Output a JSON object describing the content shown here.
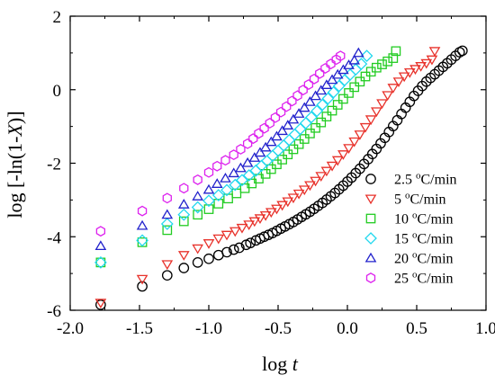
{
  "chart_data": {
    "type": "scatter",
    "title": "",
    "xlabel": {
      "prefix": "log ",
      "var": "t",
      "suffix": ""
    },
    "ylabel": {
      "prefix": "log [-ln(1-",
      "var": "X",
      "suffix": ")]"
    },
    "xlim": [
      -2.0,
      1.0
    ],
    "ylim": [
      -6,
      2
    ],
    "xticks": [
      -2.0,
      -1.5,
      -1.0,
      -0.5,
      0.0,
      0.5,
      1.0
    ],
    "xtick_labels": [
      "-2.0",
      "-1.5",
      "-1.0",
      "-0.5",
      "0.0",
      "0.5",
      "1.0"
    ],
    "yticks": [
      -6,
      -4,
      -2,
      0,
      2
    ],
    "ytick_labels": [
      "-6",
      "-4",
      "-2",
      "0",
      "2"
    ],
    "grid": false,
    "legend_position": "right",
    "series": [
      {
        "name": "2.5 °C/min",
        "legend_value": "2.5",
        "legend_deg": "o",
        "legend_unit": "C/min",
        "marker": "circle",
        "color": "#000000",
        "x": [
          -1.78,
          -1.48,
          -1.3,
          -1.18,
          -1.08,
          -1.0,
          -0.93,
          -0.87,
          -0.82,
          -0.78,
          -0.73,
          -0.7,
          -0.66,
          -0.63,
          -0.6,
          -0.57,
          -0.54,
          -0.51,
          -0.48,
          -0.45,
          -0.42,
          -0.39,
          -0.36,
          -0.33,
          -0.3,
          -0.27,
          -0.24,
          -0.21,
          -0.18,
          -0.15,
          -0.12,
          -0.09,
          -0.06,
          -0.03,
          0.0,
          0.03,
          0.06,
          0.09,
          0.12,
          0.15,
          0.18,
          0.21,
          0.24,
          0.27,
          0.3,
          0.33,
          0.36,
          0.39,
          0.42,
          0.45,
          0.48,
          0.51,
          0.54,
          0.57,
          0.6,
          0.63,
          0.66,
          0.69,
          0.72,
          0.75,
          0.78,
          0.81,
          0.83
        ],
        "y": [
          -5.85,
          -5.35,
          -5.05,
          -4.85,
          -4.7,
          -4.6,
          -4.5,
          -4.42,
          -4.35,
          -4.3,
          -4.22,
          -4.17,
          -4.1,
          -4.05,
          -4.0,
          -3.95,
          -3.9,
          -3.84,
          -3.78,
          -3.72,
          -3.66,
          -3.6,
          -3.53,
          -3.46,
          -3.39,
          -3.32,
          -3.24,
          -3.16,
          -3.08,
          -2.99,
          -2.9,
          -2.81,
          -2.71,
          -2.61,
          -2.5,
          -2.39,
          -2.27,
          -2.15,
          -2.02,
          -1.89,
          -1.75,
          -1.61,
          -1.46,
          -1.31,
          -1.15,
          -0.99,
          -0.83,
          -0.66,
          -0.49,
          -0.33,
          -0.17,
          -0.03,
          0.1,
          0.22,
          0.32,
          0.42,
          0.52,
          0.62,
          0.72,
          0.82,
          0.92,
          1.02,
          1.06
        ]
      },
      {
        "name": "5 °C/min",
        "legend_value": "5",
        "legend_deg": "o",
        "legend_unit": "C/min",
        "marker": "triangle-down",
        "color": "#e8322b",
        "x": [
          -1.78,
          -1.48,
          -1.3,
          -1.18,
          -1.08,
          -1.0,
          -0.93,
          -0.87,
          -0.81,
          -0.76,
          -0.71,
          -0.67,
          -0.63,
          -0.59,
          -0.55,
          -0.51,
          -0.47,
          -0.43,
          -0.39,
          -0.35,
          -0.31,
          -0.27,
          -0.23,
          -0.19,
          -0.15,
          -0.11,
          -0.07,
          -0.03,
          0.01,
          0.05,
          0.09,
          0.13,
          0.17,
          0.21,
          0.25,
          0.29,
          0.33,
          0.37,
          0.41,
          0.45,
          0.49,
          0.53,
          0.57,
          0.61,
          0.63
        ],
        "y": [
          -5.8,
          -5.15,
          -4.75,
          -4.5,
          -4.32,
          -4.18,
          -4.05,
          -3.95,
          -3.85,
          -3.76,
          -3.67,
          -3.58,
          -3.5,
          -3.42,
          -3.33,
          -3.24,
          -3.14,
          -3.04,
          -2.94,
          -2.83,
          -2.72,
          -2.6,
          -2.48,
          -2.35,
          -2.21,
          -2.07,
          -1.92,
          -1.76,
          -1.59,
          -1.41,
          -1.22,
          -1.02,
          -0.81,
          -0.59,
          -0.37,
          -0.15,
          0.05,
          0.22,
          0.36,
          0.47,
          0.56,
          0.64,
          0.72,
          0.82,
          1.05
        ]
      },
      {
        "name": "10 °C/min",
        "legend_value": "10",
        "legend_deg": "o",
        "legend_unit": "C/min",
        "marker": "square",
        "color": "#22cc22",
        "x": [
          -1.78,
          -1.48,
          -1.3,
          -1.18,
          -1.08,
          -1.0,
          -0.93,
          -0.86,
          -0.8,
          -0.74,
          -0.69,
          -0.64,
          -0.59,
          -0.55,
          -0.51,
          -0.47,
          -0.43,
          -0.39,
          -0.35,
          -0.31,
          -0.27,
          -0.23,
          -0.19,
          -0.15,
          -0.11,
          -0.07,
          -0.03,
          0.01,
          0.05,
          0.09,
          0.13,
          0.17,
          0.21,
          0.25,
          0.29,
          0.33,
          0.35
        ],
        "y": [
          -4.7,
          -4.15,
          -3.82,
          -3.58,
          -3.4,
          -3.25,
          -3.1,
          -2.96,
          -2.82,
          -2.68,
          -2.55,
          -2.42,
          -2.29,
          -2.16,
          -2.03,
          -1.9,
          -1.76,
          -1.62,
          -1.48,
          -1.34,
          -1.19,
          -1.04,
          -0.89,
          -0.73,
          -0.57,
          -0.41,
          -0.25,
          -0.09,
          0.07,
          0.22,
          0.36,
          0.49,
          0.6,
          0.69,
          0.77,
          0.86,
          1.05
        ]
      },
      {
        "name": "15 °C/min",
        "legend_value": "15",
        "legend_deg": "o",
        "legend_unit": "C/min",
        "marker": "diamond",
        "color": "#22d8ee",
        "x": [
          -1.78,
          -1.48,
          -1.3,
          -1.18,
          -1.08,
          -1.0,
          -0.93,
          -0.87,
          -0.81,
          -0.76,
          -0.71,
          -0.66,
          -0.62,
          -0.58,
          -0.54,
          -0.5,
          -0.46,
          -0.42,
          -0.38,
          -0.34,
          -0.3,
          -0.26,
          -0.22,
          -0.18,
          -0.14,
          -0.1,
          -0.06,
          -0.02,
          0.02,
          0.06,
          0.1,
          0.14
        ],
        "y": [
          -4.7,
          -4.1,
          -3.65,
          -3.4,
          -3.2,
          -3.02,
          -2.87,
          -2.73,
          -2.59,
          -2.46,
          -2.33,
          -2.2,
          -2.07,
          -1.94,
          -1.8,
          -1.66,
          -1.52,
          -1.37,
          -1.22,
          -1.07,
          -0.91,
          -0.75,
          -0.58,
          -0.41,
          -0.24,
          -0.07,
          0.1,
          0.26,
          0.41,
          0.55,
          0.7,
          0.92
        ]
      },
      {
        "name": "20 °C/min",
        "legend_value": "20",
        "legend_deg": "o",
        "legend_unit": "C/min",
        "marker": "triangle-up",
        "color": "#2222cc",
        "x": [
          -1.78,
          -1.48,
          -1.3,
          -1.18,
          -1.08,
          -1.0,
          -0.94,
          -0.88,
          -0.82,
          -0.77,
          -0.72,
          -0.67,
          -0.63,
          -0.59,
          -0.55,
          -0.51,
          -0.47,
          -0.43,
          -0.39,
          -0.35,
          -0.31,
          -0.27,
          -0.23,
          -0.19,
          -0.15,
          -0.11,
          -0.07,
          -0.03,
          0.01,
          0.05,
          0.08
        ],
        "y": [
          -4.25,
          -3.7,
          -3.4,
          -3.12,
          -2.9,
          -2.72,
          -2.56,
          -2.41,
          -2.27,
          -2.13,
          -1.99,
          -1.85,
          -1.71,
          -1.57,
          -1.42,
          -1.27,
          -1.12,
          -0.97,
          -0.81,
          -0.65,
          -0.49,
          -0.33,
          -0.17,
          -0.02,
          0.13,
          0.27,
          0.41,
          0.54,
          0.67,
          0.8,
          1.0
        ]
      },
      {
        "name": "25 °C/min",
        "legend_value": "25",
        "legend_deg": "o",
        "legend_unit": "C/min",
        "marker": "hexagon",
        "color": "#dd22ee",
        "x": [
          -1.78,
          -1.48,
          -1.3,
          -1.18,
          -1.08,
          -1.0,
          -0.94,
          -0.88,
          -0.82,
          -0.77,
          -0.72,
          -0.68,
          -0.64,
          -0.6,
          -0.56,
          -0.52,
          -0.48,
          -0.44,
          -0.4,
          -0.36,
          -0.32,
          -0.28,
          -0.24,
          -0.2,
          -0.16,
          -0.12,
          -0.08,
          -0.05
        ],
        "y": [
          -3.85,
          -3.3,
          -2.95,
          -2.68,
          -2.45,
          -2.25,
          -2.08,
          -1.92,
          -1.77,
          -1.62,
          -1.47,
          -1.33,
          -1.19,
          -1.05,
          -0.91,
          -0.76,
          -0.61,
          -0.46,
          -0.31,
          -0.16,
          -0.01,
          0.14,
          0.29,
          0.44,
          0.58,
          0.7,
          0.82,
          0.92
        ]
      }
    ]
  }
}
